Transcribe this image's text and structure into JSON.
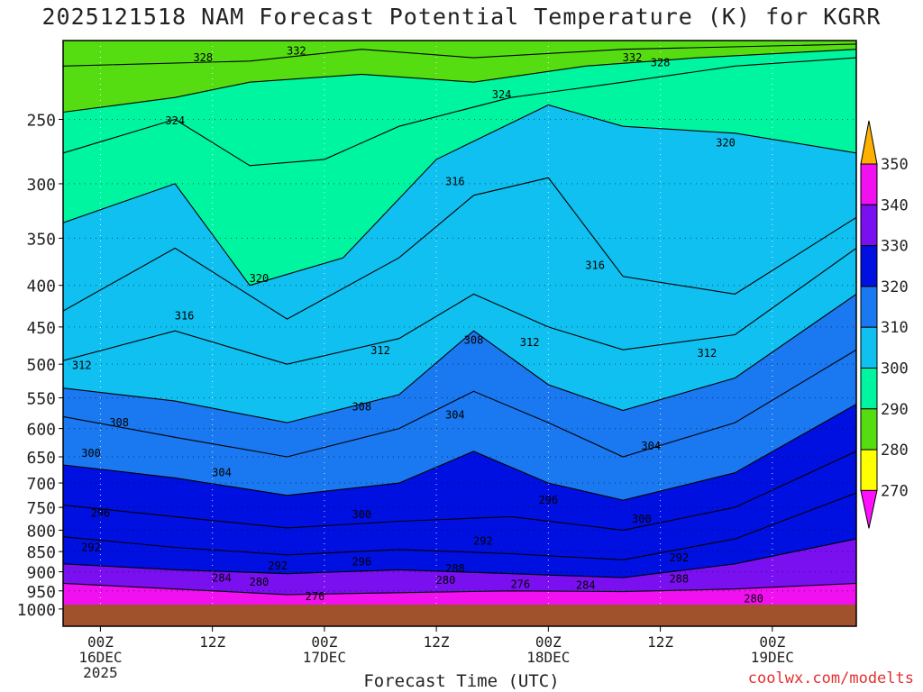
{
  "title": "2025121518 NAM Forecast Potential Temperature (K) for KGRR",
  "xlabel": "Forecast Time (UTC)",
  "credit": "coolwx.com/modelts",
  "chart_data": {
    "type": "contour",
    "variable": "Potential Temperature (K)",
    "yaxis": {
      "scale": "log-pressure",
      "ticks": [
        250,
        300,
        350,
        400,
        450,
        500,
        550,
        600,
        650,
        700,
        750,
        800,
        850,
        900,
        950,
        1000
      ],
      "top_hPa": 200,
      "bottom_hPa": 1050
    },
    "xaxis": {
      "start_hours": -4,
      "end_hours": 81,
      "ticks": [
        {
          "hours": 0,
          "lines": [
            "00Z",
            "16DEC",
            "2025"
          ]
        },
        {
          "hours": 12,
          "lines": [
            "12Z"
          ]
        },
        {
          "hours": 24,
          "lines": [
            "00Z",
            "17DEC"
          ]
        },
        {
          "hours": 36,
          "lines": [
            "12Z"
          ]
        },
        {
          "hours": 48,
          "lines": [
            "00Z",
            "18DEC"
          ]
        },
        {
          "hours": 60,
          "lines": [
            "12Z"
          ]
        },
        {
          "hours": 72,
          "lines": [
            "00Z",
            "19DEC"
          ]
        }
      ]
    },
    "grid": true,
    "colorbar": {
      "labels": [
        350,
        340,
        330,
        320,
        310,
        300,
        290,
        280,
        270
      ],
      "bands": [
        {
          "from": 340,
          "to": 350,
          "color": "#ffff00"
        },
        {
          "from": 330,
          "to": 340,
          "color": "#55dd11"
        },
        {
          "from": 320,
          "to": 330,
          "color": "#00f5a0"
        },
        {
          "from": 310,
          "to": 320,
          "color": "#10c0f0"
        },
        {
          "from": 300,
          "to": 310,
          "color": "#1a78f0"
        },
        {
          "from": 290,
          "to": 300,
          "color": "#0010e0"
        },
        {
          "from": 280,
          "to": 290,
          "color": "#7a10f0"
        },
        {
          "from": 270,
          "to": 280,
          "color": "#f010f0"
        }
      ],
      "over_color": "#ffb000",
      "under_color": "#ff10ff"
    },
    "isotherms": [
      {
        "theta": 280,
        "points": [
          [
            -4,
            930
          ],
          [
            8,
            945
          ],
          [
            20,
            960
          ],
          [
            32,
            955
          ],
          [
            44,
            950
          ],
          [
            56,
            952
          ],
          [
            68,
            945
          ],
          [
            81,
            930
          ]
        ]
      },
      {
        "theta": 288,
        "points": [
          [
            -4,
            880
          ],
          [
            8,
            895
          ],
          [
            20,
            905
          ],
          [
            32,
            895
          ],
          [
            44,
            905
          ],
          [
            56,
            915
          ],
          [
            68,
            880
          ],
          [
            81,
            820
          ]
        ]
      },
      {
        "theta": 292,
        "points": [
          [
            -4,
            815
          ],
          [
            8,
            840
          ],
          [
            20,
            858
          ],
          [
            32,
            845
          ],
          [
            44,
            855
          ],
          [
            56,
            870
          ],
          [
            68,
            820
          ],
          [
            81,
            720
          ]
        ]
      },
      {
        "theta": 296,
        "points": [
          [
            -4,
            745
          ],
          [
            8,
            770
          ],
          [
            20,
            795
          ],
          [
            32,
            780
          ],
          [
            44,
            770
          ],
          [
            56,
            800
          ],
          [
            68,
            750
          ],
          [
            81,
            640
          ]
        ]
      },
      {
        "theta": 300,
        "points": [
          [
            -4,
            665
          ],
          [
            8,
            690
          ],
          [
            20,
            725
          ],
          [
            32,
            700
          ],
          [
            40,
            640
          ],
          [
            48,
            700
          ],
          [
            56,
            735
          ],
          [
            68,
            680
          ],
          [
            81,
            560
          ]
        ]
      },
      {
        "theta": 304,
        "points": [
          [
            -4,
            580
          ],
          [
            8,
            615
          ],
          [
            20,
            650
          ],
          [
            32,
            600
          ],
          [
            40,
            540
          ],
          [
            48,
            590
          ],
          [
            56,
            650
          ],
          [
            68,
            590
          ],
          [
            81,
            480
          ]
        ]
      },
      {
        "theta": 308,
        "points": [
          [
            -4,
            535
          ],
          [
            8,
            555
          ],
          [
            20,
            590
          ],
          [
            32,
            545
          ],
          [
            40,
            455
          ],
          [
            48,
            530
          ],
          [
            56,
            570
          ],
          [
            68,
            520
          ],
          [
            81,
            410
          ]
        ]
      },
      {
        "theta": 312,
        "points": [
          [
            -4,
            495
          ],
          [
            8,
            455
          ],
          [
            20,
            500
          ],
          [
            32,
            465
          ],
          [
            40,
            410
          ],
          [
            48,
            450
          ],
          [
            56,
            480
          ],
          [
            68,
            460
          ],
          [
            81,
            360
          ]
        ]
      },
      {
        "theta": 316,
        "points": [
          [
            -4,
            430
          ],
          [
            8,
            360
          ],
          [
            20,
            440
          ],
          [
            32,
            370
          ],
          [
            40,
            310
          ],
          [
            48,
            295
          ],
          [
            56,
            390
          ],
          [
            68,
            410
          ],
          [
            81,
            330
          ]
        ]
      },
      {
        "theta": 320,
        "points": [
          [
            -4,
            335
          ],
          [
            8,
            300
          ],
          [
            16,
            400
          ],
          [
            26,
            370
          ],
          [
            36,
            280
          ],
          [
            48,
            240
          ],
          [
            56,
            255
          ],
          [
            68,
            260
          ],
          [
            81,
            275
          ]
        ]
      },
      {
        "theta": 324,
        "points": [
          [
            -4,
            275
          ],
          [
            8,
            250
          ],
          [
            16,
            285
          ],
          [
            24,
            280
          ],
          [
            32,
            255
          ],
          [
            44,
            235
          ],
          [
            56,
            225
          ],
          [
            68,
            215
          ],
          [
            81,
            210
          ]
        ]
      },
      {
        "theta": 328,
        "points": [
          [
            -4,
            245
          ],
          [
            8,
            235
          ],
          [
            16,
            225
          ],
          [
            28,
            220
          ],
          [
            40,
            225
          ],
          [
            52,
            215
          ],
          [
            64,
            210
          ],
          [
            81,
            205
          ]
        ]
      },
      {
        "theta": 332,
        "points": [
          [
            -4,
            215
          ],
          [
            16,
            212
          ],
          [
            28,
            205
          ],
          [
            40,
            210
          ],
          [
            56,
            205
          ],
          [
            81,
            202
          ]
        ]
      }
    ],
    "contour_labels": [
      {
        "text": "328",
        "hours": 11,
        "hPa": 210
      },
      {
        "text": "332",
        "hours": 21,
        "hPa": 206
      },
      {
        "text": "332",
        "hours": 57,
        "hPa": 210
      },
      {
        "text": "328",
        "hours": 60,
        "hPa": 213
      },
      {
        "text": "324",
        "hours": 8,
        "hPa": 251
      },
      {
        "text": "324",
        "hours": 43,
        "hPa": 233
      },
      {
        "text": "320",
        "hours": 67,
        "hPa": 267
      },
      {
        "text": "316",
        "hours": 38,
        "hPa": 298
      },
      {
        "text": "320",
        "hours": 17,
        "hPa": 392
      },
      {
        "text": "316",
        "hours": 53,
        "hPa": 378
      },
      {
        "text": "316",
        "hours": 9,
        "hPa": 436
      },
      {
        "text": "312",
        "hours": 30,
        "hPa": 481
      },
      {
        "text": "308",
        "hours": 40,
        "hPa": 467
      },
      {
        "text": "312",
        "hours": 46,
        "hPa": 470
      },
      {
        "text": "312",
        "hours": 65,
        "hPa": 485
      },
      {
        "text": "312",
        "hours": -2,
        "hPa": 502
      },
      {
        "text": "308",
        "hours": 28,
        "hPa": 564
      },
      {
        "text": "304",
        "hours": 38,
        "hPa": 577
      },
      {
        "text": "308",
        "hours": 2,
        "hPa": 590
      },
      {
        "text": "304",
        "hours": 59,
        "hPa": 630
      },
      {
        "text": "300",
        "hours": -1,
        "hPa": 643
      },
      {
        "text": "304",
        "hours": 13,
        "hPa": 680
      },
      {
        "text": "296",
        "hours": 0,
        "hPa": 762
      },
      {
        "text": "300",
        "hours": 28,
        "hPa": 765
      },
      {
        "text": "296",
        "hours": 48,
        "hPa": 735
      },
      {
        "text": "300",
        "hours": 58,
        "hPa": 775
      },
      {
        "text": "292",
        "hours": -1,
        "hPa": 840
      },
      {
        "text": "292",
        "hours": 41,
        "hPa": 825
      },
      {
        "text": "292",
        "hours": 62,
        "hPa": 865
      },
      {
        "text": "292",
        "hours": 19,
        "hPa": 885
      },
      {
        "text": "296",
        "hours": 28,
        "hPa": 875
      },
      {
        "text": "288",
        "hours": 38,
        "hPa": 892
      },
      {
        "text": "284",
        "hours": 13,
        "hPa": 916
      },
      {
        "text": "280",
        "hours": 17,
        "hPa": 927
      },
      {
        "text": "280",
        "hours": 37,
        "hPa": 922
      },
      {
        "text": "276",
        "hours": 45,
        "hPa": 932
      },
      {
        "text": "284",
        "hours": 52,
        "hPa": 935
      },
      {
        "text": "288",
        "hours": 62,
        "hPa": 918
      },
      {
        "text": "276",
        "hours": 23,
        "hPa": 965
      },
      {
        "text": "280",
        "hours": 70,
        "hPa": 972
      }
    ]
  }
}
